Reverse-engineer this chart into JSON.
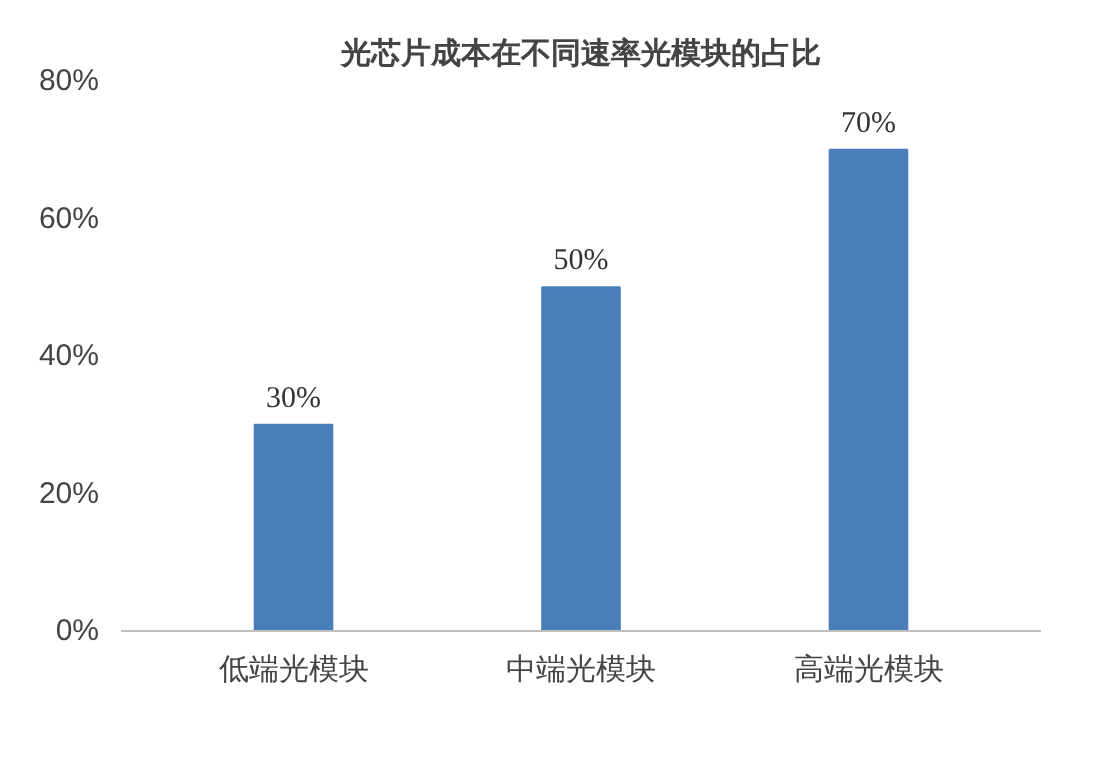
{
  "chart_data": {
    "type": "bar",
    "title": "光芯片成本在不同速率光模块的占比",
    "categories": [
      "低端光模块",
      "中端光模块",
      "高端光模块"
    ],
    "values": [
      30,
      50,
      70
    ],
    "color": "#4a7ebb",
    "value_labels": [
      "30%",
      "50%",
      "70%"
    ],
    "ylim": [
      0,
      80
    ],
    "yticks": [
      {
        "value": 0,
        "label": "0%"
      },
      {
        "value": 20,
        "label": "20%"
      },
      {
        "value": 40,
        "label": "40%"
      },
      {
        "value": 60,
        "label": "60%"
      },
      {
        "value": 80,
        "label": "80%"
      }
    ],
    "grid": false
  }
}
